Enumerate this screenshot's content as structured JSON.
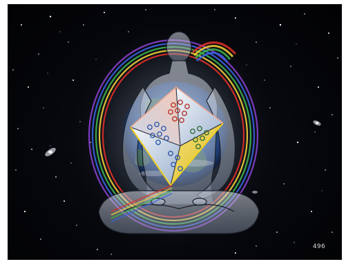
{
  "slide": {
    "page_number": "496"
  },
  "palette": {
    "space": "#04050a",
    "earth_blue": "#3b6fb0",
    "aura_red": "#e0302a",
    "aura_yellow": "#f2d23a",
    "aura_green": "#3fb54f",
    "aura_blue": "#3a63e0",
    "aura_violet": "#8a3fd0",
    "crystal_white": "#f5f5f5",
    "crystal_yellow": "#f0d020",
    "crystal_pink": "#f0a890"
  }
}
